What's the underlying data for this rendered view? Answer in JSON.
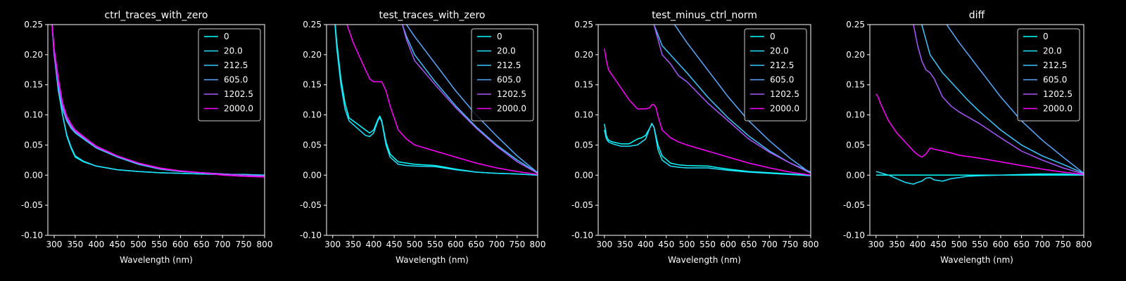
{
  "chart_data": [
    {
      "type": "line",
      "title": "ctrl_traces_with_zero",
      "xlabel": "Wavelength (nm)",
      "ylabel": "",
      "xlim": [
        285,
        800
      ],
      "ylim": [
        -0.1,
        0.25
      ],
      "xticks": [
        300,
        350,
        400,
        450,
        500,
        550,
        600,
        650,
        700,
        750,
        800
      ],
      "yticks": [
        -0.1,
        -0.05,
        0.0,
        0.05,
        0.1,
        0.15,
        0.2,
        0.25
      ],
      "legend_position": "top-right",
      "series": [
        {
          "name": "0",
          "color": "#00ffff",
          "x": [
            295,
            300,
            310,
            320,
            330,
            340,
            350,
            370,
            400,
            450,
            500,
            550,
            600,
            650,
            700,
            750,
            800
          ],
          "y": [
            0.25,
            0.2,
            0.14,
            0.1,
            0.065,
            0.045,
            0.03,
            0.022,
            0.015,
            0.009,
            0.006,
            0.004,
            0.003,
            0.002,
            0.001,
            0.001,
            0.0
          ]
        },
        {
          "name": "20.0",
          "color": "#1ce3ff",
          "x": [
            295,
            300,
            310,
            320,
            330,
            340,
            350,
            370,
            400,
            450,
            500,
            550,
            600,
            650,
            700,
            750,
            800
          ],
          "y": [
            0.25,
            0.2,
            0.14,
            0.1,
            0.067,
            0.047,
            0.032,
            0.023,
            0.015,
            0.009,
            0.006,
            0.004,
            0.003,
            0.002,
            0.001,
            0.001,
            0.0
          ]
        },
        {
          "name": "212.5",
          "color": "#39c6ff",
          "x": [
            295,
            300,
            310,
            320,
            330,
            340,
            350,
            370,
            400,
            450,
            500,
            550,
            600,
            650,
            700,
            750,
            800
          ],
          "y": [
            0.25,
            0.2,
            0.15,
            0.11,
            0.09,
            0.078,
            0.07,
            0.06,
            0.045,
            0.03,
            0.018,
            0.01,
            0.006,
            0.004,
            0.002,
            0.0,
            0.0
          ]
        },
        {
          "name": "605.0",
          "color": "#55aaff",
          "x": [
            295,
            300,
            310,
            320,
            330,
            340,
            350,
            370,
            400,
            450,
            500,
            550,
            600,
            650,
            700,
            750,
            800
          ],
          "y": [
            0.25,
            0.2,
            0.15,
            0.112,
            0.092,
            0.08,
            0.071,
            0.062,
            0.046,
            0.031,
            0.019,
            0.011,
            0.006,
            0.004,
            0.002,
            0.0,
            0.0
          ]
        },
        {
          "name": "1202.5",
          "color": "#aa55ff",
          "x": [
            295,
            300,
            310,
            320,
            330,
            340,
            350,
            370,
            400,
            450,
            500,
            550,
            600,
            650,
            700,
            750,
            800
          ],
          "y": [
            0.25,
            0.2,
            0.15,
            0.115,
            0.095,
            0.082,
            0.073,
            0.063,
            0.047,
            0.032,
            0.02,
            0.011,
            0.007,
            0.004,
            0.002,
            0.0,
            -0.002
          ]
        },
        {
          "name": "2000.0",
          "color": "#ff00ff",
          "x": [
            295,
            300,
            310,
            320,
            330,
            340,
            350,
            370,
            400,
            450,
            500,
            550,
            600,
            650,
            700,
            750,
            800
          ],
          "y": [
            0.25,
            0.21,
            0.16,
            0.12,
            0.098,
            0.085,
            0.075,
            0.064,
            0.048,
            0.032,
            0.02,
            0.012,
            0.007,
            0.004,
            0.0,
            -0.002,
            -0.003
          ]
        }
      ]
    },
    {
      "type": "line",
      "title": "test_traces_with_zero",
      "xlabel": "Wavelength (nm)",
      "ylabel": "",
      "xlim": [
        285,
        800
      ],
      "ylim": [
        -0.1,
        0.25
      ],
      "xticks": [
        300,
        350,
        400,
        450,
        500,
        550,
        600,
        650,
        700,
        750,
        800
      ],
      "yticks": [
        -0.1,
        -0.05,
        0.0,
        0.05,
        0.1,
        0.15,
        0.2,
        0.25
      ],
      "legend_position": "top-right",
      "series": [
        {
          "name": "0",
          "color": "#00ffff",
          "x": [
            300,
            310,
            320,
            330,
            340,
            360,
            380,
            390,
            400,
            410,
            415,
            420,
            430,
            440,
            460,
            480,
            500,
            550,
            600,
            650,
            700,
            750,
            800
          ],
          "y": [
            0.3,
            0.22,
            0.16,
            0.12,
            0.095,
            0.085,
            0.075,
            0.07,
            0.075,
            0.092,
            0.098,
            0.09,
            0.055,
            0.035,
            0.022,
            0.02,
            0.018,
            0.016,
            0.01,
            0.005,
            0.003,
            0.002,
            0.0
          ]
        },
        {
          "name": "20.0",
          "color": "#1ce3ff",
          "x": [
            300,
            310,
            320,
            330,
            340,
            360,
            380,
            390,
            400,
            410,
            415,
            420,
            430,
            440,
            460,
            480,
            500,
            550,
            600,
            650,
            700,
            750,
            800
          ],
          "y": [
            0.3,
            0.21,
            0.15,
            0.11,
            0.09,
            0.078,
            0.066,
            0.064,
            0.07,
            0.09,
            0.096,
            0.088,
            0.05,
            0.03,
            0.018,
            0.016,
            0.015,
            0.014,
            0.009,
            0.005,
            0.003,
            0.002,
            0.0
          ]
        },
        {
          "name": "212.5",
          "color": "#39c6ff",
          "x": [
            470,
            480,
            500,
            550,
            600,
            650,
            700,
            750,
            800
          ],
          "y": [
            0.25,
            0.23,
            0.2,
            0.155,
            0.115,
            0.08,
            0.05,
            0.025,
            0.004
          ]
        },
        {
          "name": "605.0",
          "color": "#55aaff",
          "x": [
            480,
            500,
            550,
            600,
            650,
            700,
            750,
            800
          ],
          "y": [
            0.25,
            0.23,
            0.185,
            0.14,
            0.1,
            0.065,
            0.032,
            0.004
          ]
        },
        {
          "name": "1202.5",
          "color": "#aa55ff",
          "x": [
            470,
            480,
            500,
            550,
            600,
            650,
            700,
            750,
            800
          ],
          "y": [
            0.25,
            0.225,
            0.19,
            0.15,
            0.112,
            0.078,
            0.048,
            0.022,
            0.003
          ]
        },
        {
          "name": "2000.0",
          "color": "#ff00ff",
          "x": [
            335,
            350,
            370,
            390,
            400,
            410,
            420,
            430,
            440,
            460,
            480,
            500,
            550,
            600,
            650,
            700,
            750,
            800
          ],
          "y": [
            0.25,
            0.22,
            0.19,
            0.16,
            0.155,
            0.155,
            0.155,
            0.14,
            0.115,
            0.075,
            0.06,
            0.05,
            0.04,
            0.03,
            0.02,
            0.012,
            0.006,
            0.001
          ]
        }
      ]
    },
    {
      "type": "line",
      "title": "test_minus_ctrl_norm",
      "xlabel": "Wavelength (nm)",
      "ylabel": "",
      "xlim": [
        285,
        800
      ],
      "ylim": [
        -0.1,
        0.25
      ],
      "xticks": [
        300,
        350,
        400,
        450,
        500,
        550,
        600,
        650,
        700,
        750,
        800
      ],
      "yticks": [
        -0.1,
        -0.05,
        0.0,
        0.05,
        0.1,
        0.15,
        0.2,
        0.25
      ],
      "legend_position": "top-right",
      "series": [
        {
          "name": "0",
          "color": "#00ffff",
          "x": [
            300,
            305,
            310,
            320,
            340,
            360,
            380,
            390,
            400,
            410,
            415,
            420,
            430,
            440,
            460,
            480,
            500,
            550,
            600,
            650,
            700,
            750,
            800
          ],
          "y": [
            0.085,
            0.065,
            0.058,
            0.055,
            0.052,
            0.052,
            0.06,
            0.062,
            0.066,
            0.078,
            0.085,
            0.08,
            0.05,
            0.032,
            0.02,
            0.017,
            0.016,
            0.015,
            0.01,
            0.006,
            0.004,
            0.002,
            0.0
          ]
        },
        {
          "name": "20.0",
          "color": "#1ce3ff",
          "x": [
            300,
            305,
            310,
            320,
            340,
            360,
            380,
            390,
            400,
            410,
            415,
            420,
            430,
            440,
            460,
            480,
            500,
            550,
            600,
            650,
            700,
            750,
            800
          ],
          "y": [
            0.075,
            0.06,
            0.055,
            0.052,
            0.048,
            0.048,
            0.05,
            0.055,
            0.06,
            0.078,
            0.086,
            0.08,
            0.042,
            0.025,
            0.015,
            0.013,
            0.012,
            0.012,
            0.008,
            0.005,
            0.003,
            0.001,
            -0.001
          ]
        },
        {
          "name": "212.5",
          "color": "#39c6ff",
          "x": [
            420,
            440,
            460,
            480,
            500,
            550,
            600,
            650,
            700,
            750,
            800
          ],
          "y": [
            0.25,
            0.215,
            0.2,
            0.185,
            0.17,
            0.13,
            0.095,
            0.065,
            0.04,
            0.02,
            0.005
          ]
        },
        {
          "name": "605.0",
          "color": "#55aaff",
          "x": [
            470,
            480,
            500,
            550,
            600,
            650,
            700,
            750,
            800
          ],
          "y": [
            0.25,
            0.24,
            0.22,
            0.175,
            0.13,
            0.09,
            0.057,
            0.028,
            0.003
          ]
        },
        {
          "name": "1202.5",
          "color": "#aa55ff",
          "x": [
            420,
            440,
            460,
            480,
            500,
            550,
            600,
            650,
            700,
            750,
            800
          ],
          "y": [
            0.25,
            0.2,
            0.185,
            0.165,
            0.155,
            0.12,
            0.09,
            0.06,
            0.038,
            0.02,
            0.003
          ]
        },
        {
          "name": "2000.0",
          "color": "#ff00ff",
          "x": [
            300,
            305,
            310,
            320,
            340,
            360,
            380,
            400,
            410,
            415,
            420,
            425,
            430,
            440,
            460,
            480,
            500,
            550,
            600,
            650,
            700,
            750,
            800
          ],
          "y": [
            0.21,
            0.19,
            0.175,
            0.165,
            0.145,
            0.125,
            0.11,
            0.11,
            0.112,
            0.117,
            0.117,
            0.112,
            0.098,
            0.075,
            0.062,
            0.055,
            0.05,
            0.04,
            0.03,
            0.02,
            0.012,
            0.005,
            0.0
          ]
        }
      ]
    },
    {
      "type": "line",
      "title": "diff",
      "xlabel": "Wavelength (nm)",
      "ylabel": "",
      "xlim": [
        285,
        800
      ],
      "ylim": [
        -0.1,
        0.25
      ],
      "xticks": [
        300,
        350,
        400,
        450,
        500,
        550,
        600,
        650,
        700,
        750,
        800
      ],
      "yticks": [
        -0.1,
        -0.05,
        0.0,
        0.05,
        0.1,
        0.15,
        0.2,
        0.25
      ],
      "legend_position": "top-right",
      "series": [
        {
          "name": "0",
          "color": "#00ffff",
          "x": [
            300,
            800
          ],
          "y": [
            0.0,
            0.0
          ]
        },
        {
          "name": "20.0",
          "color": "#1ce3ff",
          "x": [
            300,
            310,
            330,
            350,
            370,
            390,
            400,
            410,
            420,
            430,
            440,
            460,
            480,
            500,
            520,
            550,
            600,
            650,
            700,
            750,
            800
          ],
          "y": [
            0.006,
            0.004,
            0.0,
            -0.006,
            -0.012,
            -0.015,
            -0.012,
            -0.01,
            -0.005,
            -0.004,
            -0.008,
            -0.01,
            -0.006,
            -0.004,
            -0.002,
            -0.001,
            0.0,
            0.001,
            0.002,
            0.002,
            0.0
          ]
        },
        {
          "name": "212.5",
          "color": "#39c6ff",
          "x": [
            410,
            420,
            430,
            440,
            460,
            480,
            500,
            520,
            550,
            600,
            650,
            700,
            750,
            800
          ],
          "y": [
            0.25,
            0.225,
            0.2,
            0.19,
            0.17,
            0.155,
            0.14,
            0.125,
            0.105,
            0.075,
            0.05,
            0.032,
            0.018,
            0.003
          ]
        },
        {
          "name": "605.0",
          "color": "#55aaff",
          "x": [
            470,
            480,
            500,
            550,
            600,
            650,
            700,
            750,
            800
          ],
          "y": [
            0.25,
            0.24,
            0.22,
            0.175,
            0.13,
            0.09,
            0.058,
            0.03,
            0.003
          ]
        },
        {
          "name": "1202.5",
          "color": "#aa55ff",
          "x": [
            390,
            400,
            410,
            420,
            430,
            440,
            460,
            480,
            500,
            550,
            600,
            650,
            700,
            750,
            800
          ],
          "y": [
            0.25,
            0.215,
            0.19,
            0.175,
            0.17,
            0.16,
            0.13,
            0.115,
            0.105,
            0.085,
            0.062,
            0.04,
            0.025,
            0.012,
            0.002
          ]
        },
        {
          "name": "2000.0",
          "color": "#ff00ff",
          "x": [
            300,
            305,
            310,
            320,
            330,
            350,
            370,
            390,
            400,
            410,
            420,
            430,
            440,
            460,
            480,
            500,
            550,
            600,
            650,
            700,
            750,
            800
          ],
          "y": [
            0.135,
            0.13,
            0.12,
            0.105,
            0.09,
            0.07,
            0.055,
            0.04,
            0.034,
            0.03,
            0.035,
            0.045,
            0.043,
            0.04,
            0.037,
            0.033,
            0.028,
            0.022,
            0.016,
            0.01,
            0.005,
            0.001
          ]
        }
      ]
    }
  ]
}
